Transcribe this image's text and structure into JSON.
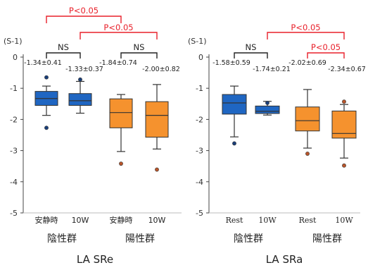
{
  "chart_data": [
    {
      "type": "box",
      "title": "LA SRe",
      "ylabel": "(S-1)",
      "ylim": [
        -5,
        0
      ],
      "yticks": [
        0,
        -1,
        -2,
        -3,
        -4,
        -5
      ],
      "ytick_labels": [
        "0",
        "-1",
        "-2",
        "-3",
        "-4",
        "-5"
      ],
      "categories": [
        "安静時",
        "10W",
        "安静時",
        "10W"
      ],
      "groups": [
        {
          "name": "陰性群",
          "color": "#1f66c2"
        },
        {
          "name": "陽性群",
          "color": "#f5922e"
        }
      ],
      "boxes": [
        {
          "category": "安静時",
          "group": "陰性群",
          "label": "-1.34±0.41",
          "whisker_low": -1.87,
          "q1": -1.55,
          "median": -1.33,
          "q3": -1.1,
          "whisker_high": -0.93,
          "outliers": [
            -0.65,
            -2.27
          ]
        },
        {
          "category": "10W",
          "group": "陰性群",
          "label": "-1.33±0.37",
          "whisker_low": -1.8,
          "q1": -1.55,
          "median": -1.4,
          "q3": -1.17,
          "whisker_high": -0.78,
          "outliers": [
            -0.72
          ]
        },
        {
          "category": "安静時",
          "group": "陽性群",
          "label": "-1.84±0.74",
          "whisker_low": -3.03,
          "q1": -2.27,
          "median": -1.78,
          "q3": -1.34,
          "whisker_high": -1.2,
          "outliers": [
            -3.42
          ]
        },
        {
          "category": "10W",
          "group": "陽性群",
          "label": "-2.00±0.82",
          "whisker_low": -2.95,
          "q1": -2.57,
          "median": -1.87,
          "q3": -1.43,
          "whisker_high": -0.88,
          "outliers": [
            -3.61
          ]
        }
      ],
      "comparisons": [
        {
          "from": 0,
          "to": 1,
          "label": "NS",
          "color": "#222222"
        },
        {
          "from": 2,
          "to": 3,
          "label": "NS",
          "color": "#222222"
        },
        {
          "from": 1,
          "to": 3,
          "label": "P<0.05",
          "color": "#e8202a"
        },
        {
          "from": 0,
          "to": 2,
          "label": "P<0.05",
          "color": "#e8202a"
        }
      ]
    },
    {
      "type": "box",
      "title": "LA SRa",
      "ylabel": "(S-1)",
      "ylim": [
        -5,
        0
      ],
      "yticks": [
        0,
        -1,
        -2,
        -3,
        -4,
        -5
      ],
      "ytick_labels": [
        "0",
        "-1",
        "-2",
        "-3",
        "-4",
        "-5"
      ],
      "categories": [
        "Rest",
        "10W",
        "Rest",
        "10W"
      ],
      "groups": [
        {
          "name": "陰性群",
          "color": "#1f66c2"
        },
        {
          "name": "陽性群",
          "color": "#f5922e"
        }
      ],
      "boxes": [
        {
          "category": "Rest",
          "group": "陰性群",
          "label": "-1.58±0.59",
          "whisker_low": -2.56,
          "q1": -1.83,
          "median": -1.47,
          "q3": -1.2,
          "whisker_high": -0.93,
          "outliers": [
            -2.77
          ]
        },
        {
          "category": "10W",
          "group": "陰性群",
          "label": "-1.74±0.21",
          "whisker_low": -1.86,
          "q1": -1.81,
          "median": -1.74,
          "q3": -1.57,
          "whisker_high": -1.42,
          "outliers": [
            -1.47
          ]
        },
        {
          "category": "Rest",
          "group": "陽性群",
          "label": "-2.02±0.69",
          "whisker_low": -2.92,
          "q1": -2.37,
          "median": -2.04,
          "q3": -1.6,
          "whisker_high": -1.04,
          "outliers": [
            -3.1
          ]
        },
        {
          "category": "10W",
          "group": "陽性群",
          "label": "-2.34±0.67",
          "whisker_low": -3.24,
          "q1": -2.6,
          "median": -2.45,
          "q3": -1.73,
          "whisker_high": -1.52,
          "outliers": [
            -1.43,
            -3.48
          ]
        }
      ],
      "comparisons": [
        {
          "from": 0,
          "to": 1,
          "label": "NS",
          "color": "#222222"
        },
        {
          "from": 2,
          "to": 3,
          "label": "P<0.05",
          "color": "#e8202a"
        },
        {
          "from": 1,
          "to": 3,
          "label": "P<0.05",
          "color": "#e8202a"
        }
      ]
    }
  ]
}
